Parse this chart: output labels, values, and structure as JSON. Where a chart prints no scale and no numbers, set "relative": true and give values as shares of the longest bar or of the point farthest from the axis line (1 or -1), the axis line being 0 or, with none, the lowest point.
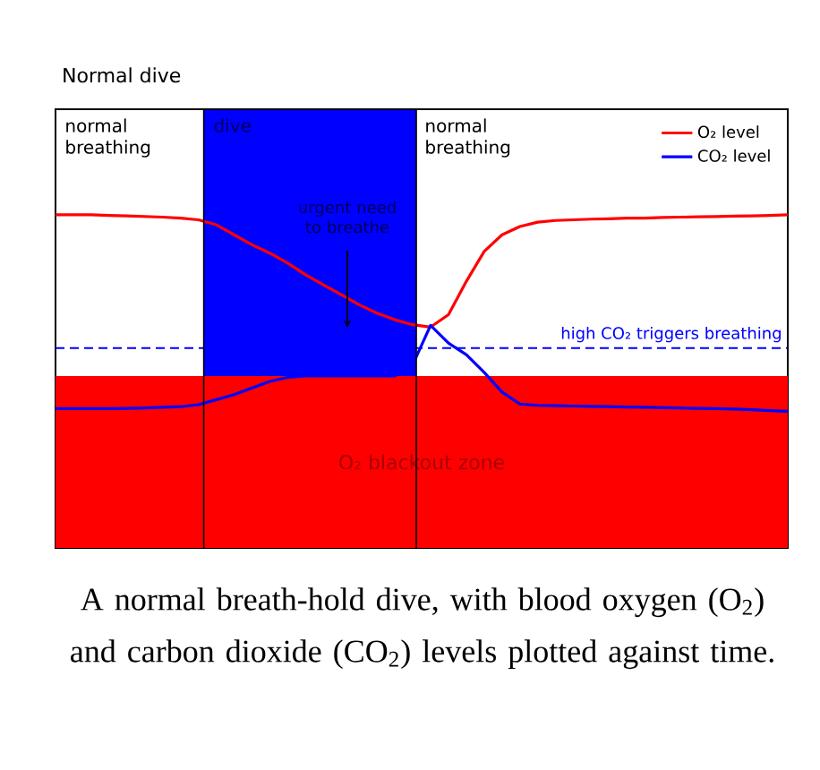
{
  "chart_data": {
    "type": "line",
    "title": "Normal dive",
    "relative": true,
    "categories": [
      null,
      null,
      null,
      null,
      null,
      null,
      null,
      null,
      null,
      null,
      null,
      null,
      null,
      null,
      null,
      null,
      null,
      null,
      null,
      null,
      null,
      null,
      null,
      null,
      null,
      null,
      null,
      null,
      null,
      null,
      null,
      null,
      null,
      null,
      null,
      null,
      null,
      null,
      null,
      null,
      null,
      null
    ],
    "series": [
      {
        "name": "O₂ level",
        "color": "#ff0000",
        "values": [
          1.0,
          1.0,
          1.0,
          0.998,
          0.997,
          0.995,
          0.993,
          0.99,
          0.985,
          0.97,
          0.94,
          0.91,
          0.885,
          0.855,
          0.82,
          0.79,
          0.76,
          0.73,
          0.705,
          0.685,
          0.67,
          0.663,
          0.7,
          0.8,
          0.89,
          0.94,
          0.965,
          0.978,
          0.983,
          0.985,
          0.987,
          0.988,
          0.99,
          0.99,
          0.992,
          0.993,
          0.994,
          0.995,
          0.996,
          0.997,
          0.998,
          1.0
        ]
      },
      {
        "name": "CO₂ level",
        "color": "#0000ff",
        "values": [
          0.418,
          0.418,
          0.418,
          0.418,
          0.419,
          0.42,
          0.422,
          0.424,
          0.43,
          0.445,
          0.46,
          0.48,
          0.5,
          0.512,
          0.516,
          0.516,
          0.516,
          0.516,
          0.516,
          0.516,
          0.55,
          0.668,
          0.615,
          0.58,
          0.527,
          0.468,
          0.432,
          0.428,
          0.427,
          0.426,
          0.425,
          0.424,
          0.423,
          0.422,
          0.421,
          0.42,
          0.419,
          0.418,
          0.417,
          0.415,
          0.412,
          0.41
        ]
      }
    ],
    "legend": "top right",
    "ref_lines": [
      {
        "axis": "y",
        "value": 0.6,
        "label": "high CO₂ triggers breathing",
        "color": "#0000ff",
        "line_style": "dashed"
      }
    ],
    "bands": [
      {
        "axis": "y",
        "from": 0,
        "to": 0.516,
        "label": "O₂ blackout zone",
        "color": "#ff0000"
      }
    ],
    "annotations": [
      "normal breathing",
      "dive",
      "normal breathing",
      "urgent need to breathe",
      "A normal breath-hold dive, with blood oxygen (O$_{2}$) and carbon dioxide (CO$_{2}$) levels plotted against time."
    ]
  }
}
